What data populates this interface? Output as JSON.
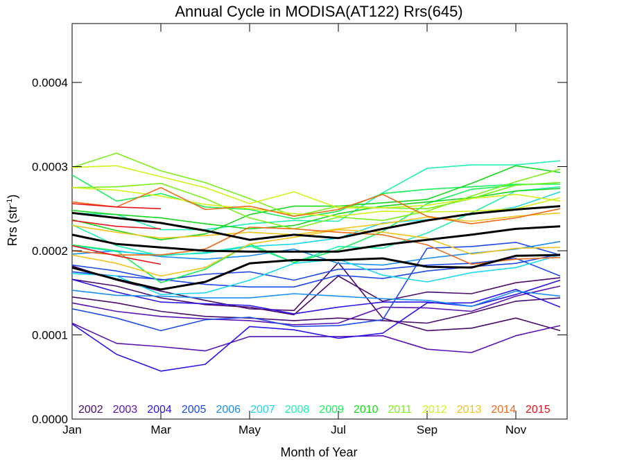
{
  "chart_data": {
    "type": "line",
    "title": "Annual Cycle in MODISA(AT122) Rrs(645)",
    "xlabel": "Month of Year",
    "ylabel": "Rrs (str",
    "ylabel_sup": "-1",
    "ylabel_tail": ")",
    "xlim": [
      1,
      12
    ],
    "ylim": [
      0,
      0.00047
    ],
    "x_ticks": [
      {
        "value": 1,
        "label": "Jan"
      },
      {
        "value": 3,
        "label": "Mar"
      },
      {
        "value": 5,
        "label": "May"
      },
      {
        "value": 7,
        "label": "Jul"
      },
      {
        "value": 9,
        "label": "Sep"
      },
      {
        "value": 11,
        "label": "Nov"
      }
    ],
    "y_ticks": [
      {
        "value": 0.0,
        "label": "0.0000"
      },
      {
        "value": 0.0001,
        "label": "0.0001"
      },
      {
        "value": 0.0002,
        "label": "0.0002"
      },
      {
        "value": 0.0003,
        "label": "0.0003"
      },
      {
        "value": 0.0004,
        "label": "0.0004"
      }
    ],
    "grid": false,
    "legend_position": "bottom-inside",
    "x": [
      1,
      2,
      3,
      4,
      5,
      6,
      7,
      8,
      9,
      10,
      11,
      12
    ],
    "series": [
      {
        "name": "2002",
        "color": "#4a0a6e",
        "values": [
          0.000182,
          0.000165,
          0.000152,
          0.000141,
          0.000131,
          0.000129,
          0.000186,
          0.00012,
          0.000105,
          0.000108,
          0.00012,
          0.000105
        ]
      },
      {
        "name": "2002",
        "color": "#4a0a6e",
        "values": [
          0.000166,
          0.000158,
          0.000144,
          0.000136,
          0.000133,
          0.000124,
          0.00017,
          0.00014,
          0.000151,
          0.000149,
          0.000162,
          0.000168
        ]
      },
      {
        "name": "2002",
        "color": "#4a0a6e",
        "values": [
          0.000145,
          0.000138,
          0.000128,
          0.000122,
          0.00012,
          0.000117,
          0.00012,
          0.000117,
          0.000114,
          0.000126,
          0.00014,
          0.000144
        ]
      },
      {
        "name": "2003",
        "color": "#5a12b4",
        "values": [
          0.000114,
          9e-05,
          8.6e-05,
          8.1e-05,
          9.8e-05,
          9.8e-05,
          9.8e-05,
          9.9e-05,
          8.3e-05,
          7.9e-05,
          9.9e-05,
          0.000111
        ]
      },
      {
        "name": "2003",
        "color": "#5a12b4",
        "values": [
          0.000138,
          0.000128,
          0.000122,
          0.000119,
          0.000117,
          0.000112,
          0.000114,
          0.000133,
          0.000132,
          0.000128,
          0.000146,
          0.000158
        ]
      },
      {
        "name": "2004",
        "color": "#2a14e6",
        "values": [
          0.000113,
          7.7e-05,
          5.7e-05,
          6.5e-05,
          0.00011,
          0.000106,
          9.6e-05,
          0.000102,
          0.000138,
          0.000138,
          0.000154,
          0.000133
        ]
      },
      {
        "name": "2004",
        "color": "#2a14e6",
        "values": [
          0.000166,
          0.000151,
          0.000139,
          0.000137,
          0.000135,
          0.000125,
          0.000133,
          0.000139,
          0.000139,
          0.000134,
          0.000148,
          0.000165
        ]
      },
      {
        "name": "2005",
        "color": "#1e4ae8",
        "values": [
          0.000131,
          0.00012,
          0.000105,
          0.000118,
          0.000121,
          0.00011,
          0.000111,
          0.000118,
          0.000203,
          0.000205,
          0.00021,
          0.000195
        ]
      },
      {
        "name": "2005",
        "color": "#1e4ae8",
        "values": [
          0.000175,
          0.00017,
          0.000166,
          0.00016,
          0.000157,
          0.000157,
          0.000171,
          0.000167,
          0.000176,
          0.000181,
          0.000185,
          0.000196
        ]
      },
      {
        "name": "2005",
        "color": "#1e4ae8",
        "values": [
          0.000183,
          0.000176,
          0.000165,
          0.000172,
          0.000175,
          0.000165,
          0.000178,
          0.000178,
          0.000183,
          0.000185,
          0.000191,
          0.00017
        ]
      },
      {
        "name": "2006",
        "color": "#1a8ef0",
        "values": [
          0.000153,
          0.000147,
          0.000146,
          0.000144,
          0.000144,
          0.000149,
          0.000146,
          0.000143,
          0.000141,
          0.000134,
          0.000152,
          0.000146
        ]
      },
      {
        "name": "2006",
        "color": "#1a8ef0",
        "values": [
          0.000196,
          0.0002,
          0.000193,
          0.00019,
          0.000194,
          0.000202,
          0.000185,
          0.000183,
          0.000191,
          0.000197,
          0.000202,
          0.000211
        ]
      },
      {
        "name": "2007",
        "color": "#1ad8f0",
        "values": [
          0.000173,
          0.00017,
          0.000148,
          0.00015,
          0.000165,
          0.000185,
          0.00019,
          0.000171,
          0.000163,
          0.000174,
          0.00018,
          0.000195
        ]
      },
      {
        "name": "2007",
        "color": "#1ad8f0",
        "values": [
          0.000206,
          0.000199,
          0.000195,
          0.000197,
          0.000205,
          0.000208,
          0.000215,
          0.000233,
          0.000237,
          0.000243,
          0.000252,
          0.00027
        ]
      },
      {
        "name": "2008",
        "color": "#1ef0b4",
        "values": [
          0.000245,
          0.000243,
          0.000225,
          0.000225,
          0.000232,
          0.000236,
          0.000235,
          0.000269,
          0.000298,
          0.000302,
          0.000302,
          0.000307
        ]
      },
      {
        "name": "2008",
        "color": "#1ef0b4",
        "values": [
          0.000231,
          0.000206,
          0.000194,
          0.000198,
          0.000206,
          0.000186,
          0.000205,
          0.000203,
          0.000221,
          0.000245,
          0.000271,
          0.000276
        ]
      },
      {
        "name": "2009",
        "color": "#1af05a",
        "values": [
          0.000207,
          0.0002,
          0.000162,
          0.000178,
          0.000208,
          0.000186,
          0.000201,
          0.000223,
          0.000256,
          0.000273,
          0.000278,
          0.000281
        ]
      },
      {
        "name": "2009",
        "color": "#1af05a",
        "values": [
          0.00029,
          0.000259,
          0.000268,
          0.000252,
          0.000249,
          0.000238,
          0.000247,
          0.000268,
          0.000273,
          0.000276,
          0.000279,
          0.000279
        ]
      },
      {
        "name": "2010",
        "color": "#16d81a",
        "values": [
          0.000237,
          0.000224,
          0.000213,
          0.00022,
          0.000243,
          0.000253,
          0.000253,
          0.000257,
          0.000261,
          0.00028,
          0.000301,
          0.000293
        ]
      },
      {
        "name": "2010",
        "color": "#16d81a",
        "values": [
          0.000248,
          0.000243,
          0.000239,
          0.000232,
          0.000226,
          0.00023,
          0.000244,
          0.000253,
          0.000258,
          0.000263,
          0.000271,
          0.000274
        ]
      },
      {
        "name": "2011",
        "color": "#7af01a",
        "values": [
          0.000275,
          0.000276,
          0.00028,
          0.000262,
          0.000239,
          0.000226,
          0.00024,
          0.000236,
          0.000247,
          0.000265,
          0.000282,
          0.000297
        ]
      },
      {
        "name": "2011",
        "color": "#7af01a",
        "values": [
          0.000299,
          0.000316,
          0.000295,
          0.000281,
          0.000262,
          0.000241,
          0.000253,
          0.000251,
          0.00025,
          0.000262,
          0.000278,
          0.000281
        ]
      },
      {
        "name": "2012",
        "color": "#d4f01a",
        "values": [
          0.000299,
          0.000301,
          0.000288,
          0.000275,
          0.000256,
          0.00027,
          0.000251,
          0.000251,
          0.000254,
          0.000262,
          0.000267,
          0.000259
        ]
      },
      {
        "name": "2012",
        "color": "#d4f01a",
        "values": [
          0.000275,
          0.000272,
          0.000265,
          0.000255,
          0.00025,
          0.000244,
          0.000241,
          0.000247,
          0.000246,
          0.000247,
          0.00025,
          0.000263
        ]
      },
      {
        "name": "2013",
        "color": "#f0c41a",
        "values": [
          0.000195,
          0.000185,
          0.00017,
          0.00018,
          0.000208,
          0.000216,
          0.000225,
          0.000222,
          0.000215,
          0.000196,
          0.000203,
          0.000204
        ]
      },
      {
        "name": "2013",
        "color": "#f0c41a",
        "values": [
          0.00023,
          0.000222,
          0.000215,
          0.000218,
          0.000222,
          0.000219,
          0.000226,
          0.000232,
          0.00024,
          0.000235,
          0.000241,
          0.000245
        ]
      },
      {
        "name": "2014",
        "color": "#f06a1a",
        "values": [
          0.000258,
          0.000252,
          0.000275,
          0.000249,
          0.000253,
          0.000241,
          0.000249,
          0.000267,
          0.000241,
          0.000232,
          0.000239,
          0.00025
        ]
      },
      {
        "name": "2014",
        "color": "#f06a1a",
        "values": [
          0.0002,
          0.000195,
          0.000195,
          0.000202,
          0.000228,
          0.000226,
          0.000222,
          0.000219,
          0.000207,
          0.000184,
          0.00019,
          0.000192
        ]
      },
      {
        "name": "2015",
        "color": "#e8141a",
        "values": [
          0.000256,
          0.000252,
          0.00025,
          null,
          null,
          null,
          null,
          null,
          null,
          null,
          null,
          null
        ]
      },
      {
        "name": "2015",
        "color": "#e8141a",
        "values": [
          0.000236,
          0.000229,
          0.000226,
          null,
          null,
          null,
          null,
          null,
          null,
          null,
          null,
          null
        ]
      },
      {
        "name": "2015",
        "color": "#e8141a",
        "values": [
          0.000206,
          0.000194,
          0.000184,
          null,
          null,
          null,
          null,
          null,
          null,
          null,
          null,
          null
        ]
      },
      {
        "name": "",
        "color": "#000000",
        "thick": true,
        "values": [
          0.000245,
          0.000239,
          0.000233,
          0.000224,
          0.000213,
          0.000219,
          0.000215,
          0.000226,
          0.000236,
          0.000244,
          0.000249,
          0.000253
        ]
      },
      {
        "name": "",
        "color": "#000000",
        "thick": true,
        "values": [
          0.000219,
          0.000208,
          0.000204,
          0.0002,
          0.000199,
          0.000199,
          0.000199,
          0.000207,
          0.000213,
          0.000219,
          0.000226,
          0.000229
        ]
      },
      {
        "name": "",
        "color": "#000000",
        "thick": true,
        "values": [
          0.00018,
          0.000166,
          0.000154,
          0.000163,
          0.000185,
          0.000189,
          0.000189,
          0.000191,
          0.000181,
          0.00018,
          0.000194,
          0.000195
        ]
      }
    ],
    "legend": [
      {
        "label": "2002",
        "color": "#4a0a6e"
      },
      {
        "label": "2003",
        "color": "#5a12b4"
      },
      {
        "label": "2004",
        "color": "#2a14e6"
      },
      {
        "label": "2005",
        "color": "#1e4ae8"
      },
      {
        "label": "2006",
        "color": "#1a8ef0"
      },
      {
        "label": "2007",
        "color": "#1ad8f0"
      },
      {
        "label": "2008",
        "color": "#1ef0b4"
      },
      {
        "label": "2009",
        "color": "#1af05a"
      },
      {
        "label": "2010",
        "color": "#16d81a"
      },
      {
        "label": "2011",
        "color": "#7af01a"
      },
      {
        "label": "2012",
        "color": "#d4f01a"
      },
      {
        "label": "2013",
        "color": "#f0c41a"
      },
      {
        "label": "2014",
        "color": "#f06a1a"
      },
      {
        "label": "2015",
        "color": "#e8141a"
      }
    ]
  }
}
